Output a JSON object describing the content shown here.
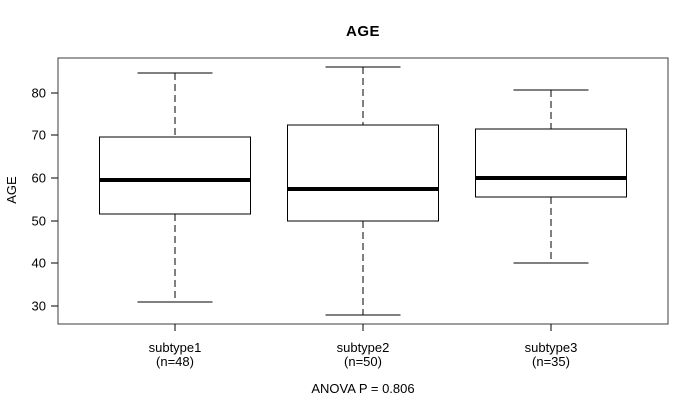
{
  "chart": {
    "title": "AGE",
    "ylabel": "AGE",
    "annotation": "ANOVA P = 0.806"
  },
  "chart_data": {
    "type": "boxplot",
    "title": "AGE",
    "xlabel": "",
    "ylabel": "AGE",
    "annotation": "ANOVA P = 0.806",
    "ylim": [
      25.8,
      88.1
    ],
    "xlim": [
      0.38,
      3.62
    ],
    "yticks": [
      30,
      40,
      50,
      60,
      70,
      80
    ],
    "grid": false,
    "legend": "none",
    "box_width": 0.8,
    "cap_width": 0.4,
    "whisker_style": "dashed",
    "groups": [
      {
        "label": "subtype1",
        "n_label": "(n=48)",
        "n": 48,
        "position": 1,
        "whisker_low": 31,
        "q1": 51.5,
        "median": 59.5,
        "q3": 69.5,
        "whisker_high": 84.5
      },
      {
        "label": "subtype2",
        "n_label": "(n=50)",
        "n": 50,
        "position": 2,
        "whisker_low": 28,
        "q1": 50,
        "median": 57.5,
        "q3": 72.5,
        "whisker_high": 86
      },
      {
        "label": "subtype3",
        "n_label": "(n=35)",
        "n": 35,
        "position": 3,
        "whisker_low": 40,
        "q1": 55.5,
        "median": 60,
        "q3": 71.5,
        "whisker_high": 80.5
      }
    ],
    "colors": {
      "line": "#000000",
      "frame": "#3c3c3c",
      "median": "#000000",
      "box_fill": "#ffffff",
      "background": "#ffffff",
      "text": "#000000"
    }
  }
}
